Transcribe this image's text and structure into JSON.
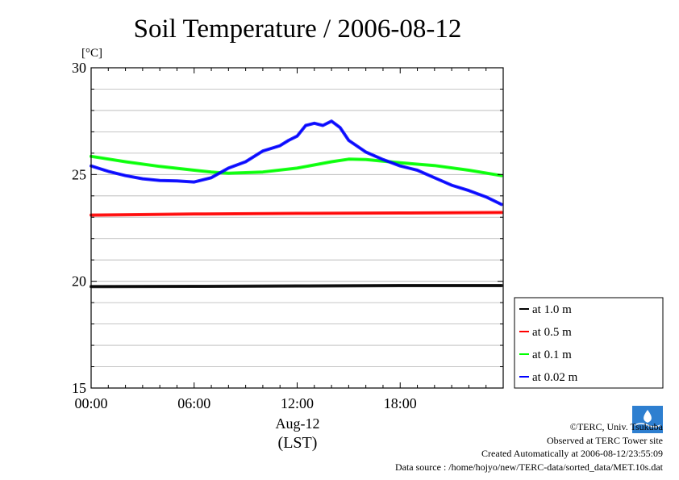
{
  "credits": {
    "copyright": "©TERC, Univ. Tsukuba",
    "site": "Observed at TERC Tower site",
    "created": "Created Automatically at 2006-08-12/23:55:09",
    "source": "Data source : /home/hojyo/new/TERC-data/sorted_data/MET.10s.dat"
  },
  "chart_data": {
    "type": "line",
    "title": "Soil Temperature / 2006-08-12",
    "ylabel": "[°C]",
    "xlabel": "Aug-12",
    "xunit": "(LST)",
    "ylim": [
      15,
      30
    ],
    "xlim": [
      0,
      24
    ],
    "yticks": [
      15,
      20,
      25,
      30
    ],
    "xticks": [
      "00:00",
      "06:00",
      "12:00",
      "18:00"
    ],
    "grid": true,
    "legend_position": "right-bottom",
    "series": [
      {
        "name": "at 1.0 m",
        "color": "#000000",
        "x": [
          0,
          6,
          12,
          18,
          23.9
        ],
        "y": [
          19.75,
          19.76,
          19.78,
          19.8,
          19.8
        ]
      },
      {
        "name": "at 0.5 m",
        "color": "#ff0000",
        "x": [
          0,
          6,
          12,
          18,
          23.9
        ],
        "y": [
          23.1,
          23.15,
          23.18,
          23.2,
          23.22
        ]
      },
      {
        "name": "at 0.1 m",
        "color": "#00ff00",
        "x": [
          0,
          2,
          4,
          6,
          7,
          8,
          10,
          12,
          14,
          15,
          16,
          18,
          20,
          22,
          23.9
        ],
        "y": [
          25.85,
          25.6,
          25.38,
          25.2,
          25.12,
          25.06,
          25.12,
          25.3,
          25.6,
          25.72,
          25.7,
          25.55,
          25.42,
          25.2,
          24.95
        ]
      },
      {
        "name": "at 0.02 m",
        "color": "#0000ff",
        "x": [
          0,
          1,
          2,
          3,
          4,
          5,
          6,
          7,
          8,
          9,
          10,
          11,
          11.5,
          12,
          12.5,
          13,
          13.5,
          14,
          14.5,
          15,
          16,
          17,
          18,
          19,
          20,
          21,
          22,
          23,
          23.9
        ],
        "y": [
          25.4,
          25.15,
          24.95,
          24.8,
          24.72,
          24.7,
          24.65,
          24.85,
          25.3,
          25.6,
          26.1,
          26.35,
          26.6,
          26.8,
          27.3,
          27.4,
          27.3,
          27.5,
          27.2,
          26.6,
          26.05,
          25.7,
          25.4,
          25.2,
          24.85,
          24.5,
          24.25,
          23.95,
          23.6
        ]
      }
    ]
  }
}
